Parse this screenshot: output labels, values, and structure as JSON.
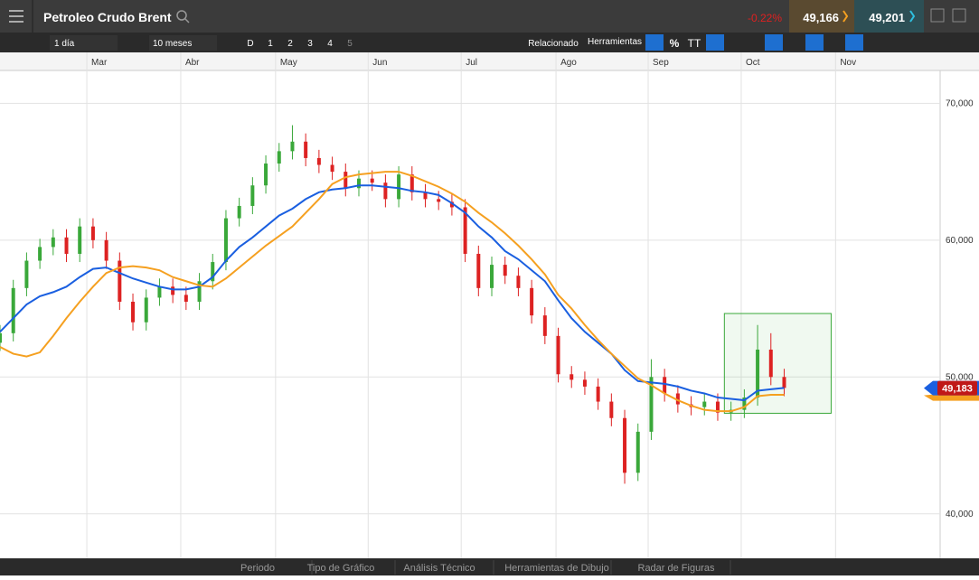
{
  "ui": {
    "title": "Petroleo Crudo Brent",
    "change": "-0.22%",
    "sell": "49,166",
    "buy": "49,201",
    "toolbar": {
      "interval": "1 día",
      "range": "10 meses",
      "buttons": [
        "D",
        "1",
        "2",
        "3",
        "4",
        "5"
      ],
      "related": "Relacionado",
      "tools": "Herramientas",
      "percent": "%",
      "text": "TT"
    },
    "tabs": [
      "Periodo",
      "Tipo de Gráfico",
      "Análisis Técnico",
      "Herramientas de Dibujo",
      "Radar de Figuras"
    ]
  },
  "chart_data": {
    "type": "candlestick",
    "xlim": [
      0,
      212.2
    ],
    "ylim": [
      36.75,
      72.4
    ],
    "xticks": [
      {
        "value": 19.6,
        "label": "Mar"
      },
      {
        "value": 40.8,
        "label": "Abr"
      },
      {
        "value": 62.2,
        "label": "May"
      },
      {
        "value": 83.1,
        "label": "Jun"
      },
      {
        "value": 104.1,
        "label": "Jul"
      },
      {
        "value": 125.5,
        "label": "Ago"
      },
      {
        "value": 146.3,
        "label": "Sep"
      },
      {
        "value": 167.3,
        "label": "Oct"
      },
      {
        "value": 188.6,
        "label": "Nov"
      }
    ],
    "yticks": [
      {
        "value": 40,
        "label": "40,000"
      },
      {
        "value": 50,
        "label": "50,000"
      },
      {
        "value": 60,
        "label": "60,000"
      },
      {
        "value": 70,
        "label": "70,000"
      }
    ],
    "grid": true,
    "up_color": "#3aa83a",
    "down_color": "#dd2222",
    "x": [
      0,
      3,
      6,
      9,
      12,
      15,
      18,
      21,
      24,
      27,
      30,
      33,
      36,
      39,
      42,
      45,
      48,
      51,
      54,
      57,
      60,
      63,
      66,
      69,
      72,
      75,
      78,
      81,
      84,
      87,
      90,
      93,
      96,
      99,
      102,
      105,
      108,
      111,
      114,
      117,
      120,
      123,
      126,
      129,
      132,
      135,
      138,
      141,
      144,
      147,
      150,
      153,
      156,
      159,
      162,
      165,
      168,
      171,
      174,
      177
    ],
    "open": [
      52.5,
      53.2,
      56.5,
      58.5,
      59.5,
      60.2,
      59.0,
      61.0,
      60.0,
      58.5,
      55.5,
      54.0,
      55.8,
      56.6,
      56.0,
      55.5,
      57.0,
      58.4,
      61.6,
      62.5,
      64.0,
      65.6,
      66.5,
      67.2,
      66.0,
      65.5,
      65.0,
      63.8,
      64.5,
      64.2,
      63.0,
      64.8,
      63.5,
      63.0,
      62.8,
      62.4,
      59.0,
      56.5,
      58.2,
      57.4,
      56.5,
      54.5,
      53.0,
      50.2,
      49.8,
      49.3,
      48.2,
      47.0,
      43.0,
      46.0,
      50.0,
      48.8,
      48.0,
      47.8,
      48.2,
      47.4,
      47.6,
      48.5,
      52.0,
      50.0
    ],
    "high": [
      53.8,
      57.1,
      59.1,
      60.1,
      60.8,
      60.8,
      61.6,
      61.6,
      60.6,
      59.1,
      56.1,
      56.4,
      57.2,
      57.2,
      56.6,
      57.6,
      59.0,
      62.2,
      63.1,
      64.6,
      66.2,
      67.1,
      68.4,
      67.8,
      66.6,
      66.1,
      65.6,
      65.1,
      65.1,
      64.8,
      65.4,
      65.4,
      64.1,
      63.6,
      63.4,
      63.0,
      59.6,
      58.8,
      58.8,
      58.0,
      57.1,
      55.1,
      53.6,
      50.8,
      50.4,
      49.9,
      48.8,
      47.6,
      46.6,
      51.3,
      50.6,
      49.4,
      48.6,
      48.8,
      48.8,
      48.2,
      49.1,
      53.8,
      53.2,
      50.6
    ],
    "low": [
      51.9,
      52.6,
      55.9,
      57.9,
      58.9,
      58.4,
      58.4,
      59.4,
      57.9,
      54.9,
      53.4,
      53.4,
      55.2,
      55.4,
      54.9,
      54.9,
      56.4,
      57.8,
      61.0,
      61.9,
      63.4,
      65.0,
      65.9,
      65.4,
      64.9,
      64.4,
      63.2,
      63.2,
      63.6,
      62.4,
      62.4,
      62.9,
      62.4,
      62.2,
      61.8,
      58.4,
      55.9,
      55.9,
      56.8,
      55.9,
      53.9,
      52.4,
      49.6,
      49.2,
      48.7,
      47.6,
      46.4,
      42.2,
      42.4,
      45.4,
      48.2,
      47.4,
      47.2,
      47.2,
      46.8,
      46.8,
      47.0,
      47.9,
      49.4,
      48.6
    ],
    "close": [
      53.2,
      56.5,
      58.5,
      59.5,
      60.2,
      59.0,
      61.0,
      60.0,
      58.5,
      55.5,
      54.0,
      55.8,
      56.6,
      56.0,
      55.5,
      57.0,
      58.4,
      61.6,
      62.5,
      64.0,
      65.6,
      66.5,
      67.2,
      66.0,
      65.5,
      65.0,
      63.8,
      64.5,
      64.2,
      63.0,
      64.8,
      63.5,
      63.0,
      62.8,
      62.4,
      59.0,
      56.5,
      58.2,
      57.4,
      56.5,
      54.5,
      53.0,
      50.2,
      49.8,
      49.3,
      48.2,
      47.0,
      43.0,
      46.0,
      50.0,
      48.8,
      48.0,
      47.8,
      48.2,
      47.4,
      47.6,
      48.5,
      52.0,
      50.0,
      49.2
    ],
    "series": [
      {
        "color": "#1a5fe0",
        "values": [
          53.3,
          54.3,
          55.3,
          55.9,
          56.2,
          56.6,
          57.3,
          57.9,
          58.0,
          57.6,
          57.2,
          56.9,
          56.6,
          56.4,
          56.4,
          56.6,
          57.3,
          58.5,
          59.5,
          60.2,
          61.0,
          61.8,
          62.3,
          63.0,
          63.5,
          63.7,
          63.8,
          64.0,
          64.0,
          63.9,
          63.8,
          63.6,
          63.5,
          63.3,
          62.7,
          62.0,
          61.0,
          60.2,
          59.2,
          58.6,
          57.8,
          57.0,
          55.6,
          54.3,
          53.3,
          52.5,
          51.7,
          50.5,
          49.7,
          49.6,
          49.5,
          49.3,
          49.0,
          48.8,
          48.5,
          48.4,
          48.3,
          49.0,
          49.1,
          49.2
        ]
      },
      {
        "color": "#f5a020",
        "values": [
          52.2,
          51.7,
          51.5,
          51.8,
          53.0,
          54.3,
          55.5,
          56.6,
          57.6,
          58.0,
          58.1,
          58.0,
          57.8,
          57.3,
          57.0,
          56.7,
          56.6,
          57.2,
          58.0,
          58.8,
          59.6,
          60.3,
          61.0,
          62.0,
          63.0,
          64.1,
          64.6,
          64.8,
          64.9,
          65.0,
          65.0,
          64.7,
          64.3,
          63.9,
          63.4,
          62.8,
          62.0,
          61.3,
          60.5,
          59.6,
          58.6,
          57.5,
          56.0,
          55.0,
          53.8,
          52.7,
          51.7,
          50.8,
          49.9,
          49.4,
          48.8,
          48.3,
          47.9,
          47.6,
          47.5,
          47.5,
          47.8,
          48.6,
          48.7,
          48.7
        ]
      }
    ],
    "price_marker": {
      "value": 49.183,
      "label": "49,183"
    },
    "highlight": {
      "x": [
        163.5,
        187.6
      ],
      "y": [
        47.35,
        54.64
      ]
    }
  }
}
